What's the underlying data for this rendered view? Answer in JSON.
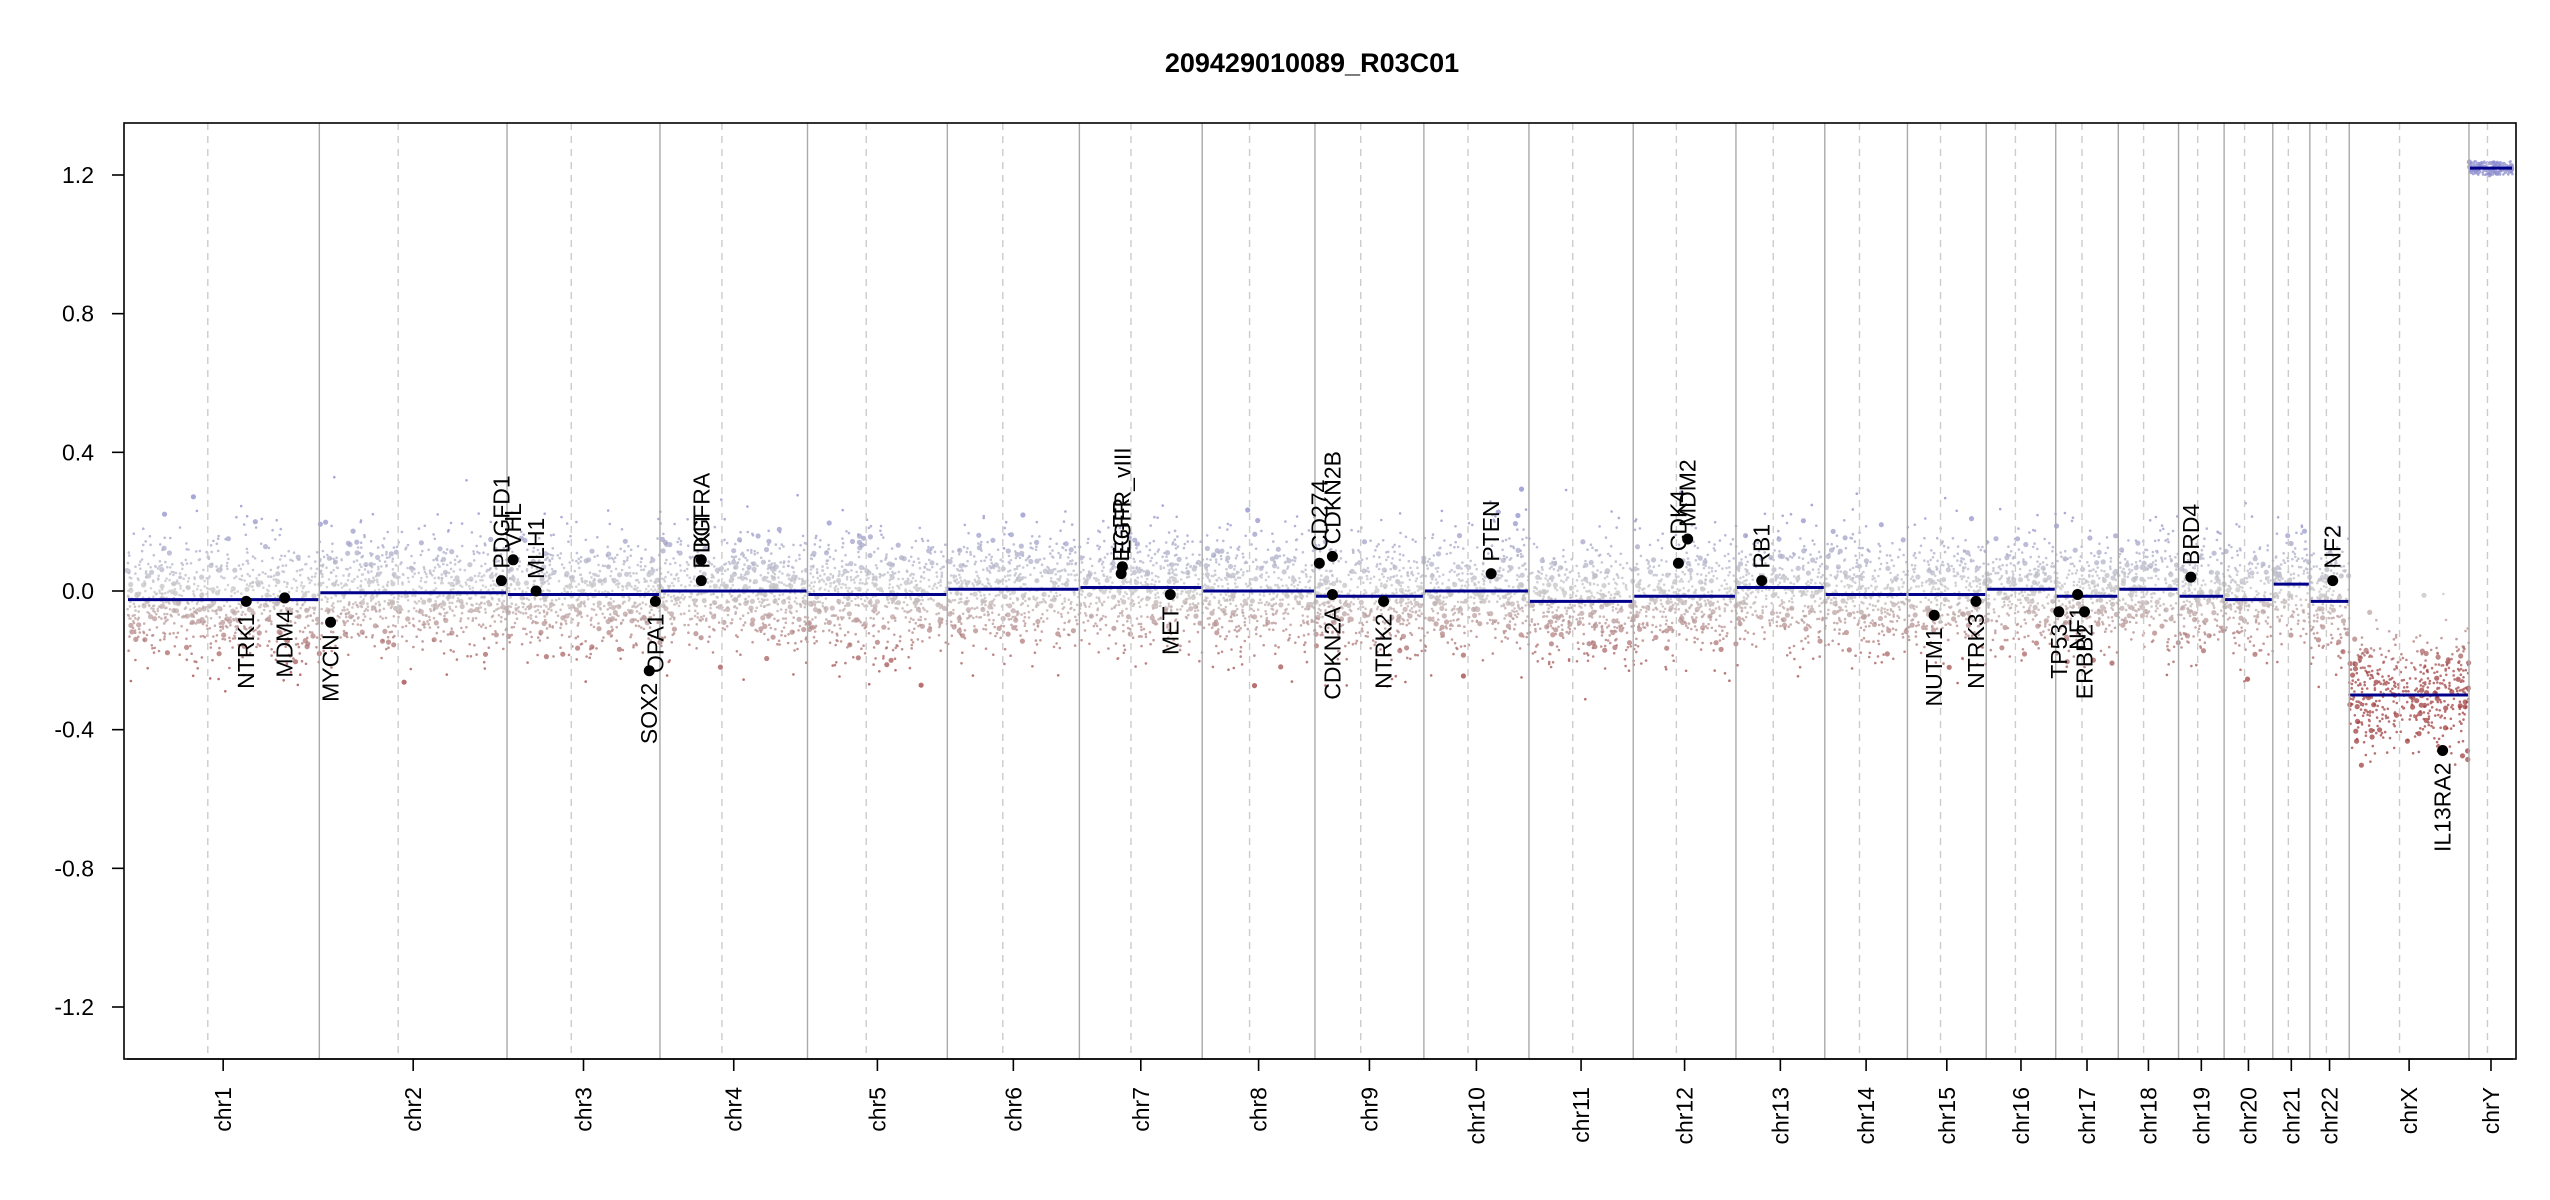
{
  "chart_data": {
    "type": "scatter",
    "title": "209429010089_R03C01",
    "xlabel": "",
    "ylabel": "",
    "ylim": [
      -1.35,
      1.35
    ],
    "yticks": [
      {
        "label": "1.2",
        "value": 1.2
      },
      {
        "label": "0.8",
        "value": 0.8
      },
      {
        "label": "0.4",
        "value": 0.4
      },
      {
        "label": "0.0",
        "value": 0.0
      },
      {
        "label": "-0.4",
        "value": -0.4
      },
      {
        "label": "-0.8",
        "value": -0.8
      },
      {
        "label": "-1.2",
        "value": -1.2
      }
    ],
    "grid": false,
    "chromosomes": [
      {
        "name": "chr1",
        "len": 249,
        "seg": [
          -0.025
        ]
      },
      {
        "name": "chr2",
        "len": 243,
        "seg": [
          -0.005
        ]
      },
      {
        "name": "chr3",
        "len": 198,
        "seg": [
          -0.01
        ]
      },
      {
        "name": "chr4",
        "len": 191,
        "seg": [
          0.0
        ]
      },
      {
        "name": "chr5",
        "len": 181,
        "seg": [
          -0.01
        ]
      },
      {
        "name": "chr6",
        "len": 171,
        "seg": [
          0.005
        ]
      },
      {
        "name": "chr7",
        "len": 159,
        "seg": [
          0.01
        ]
      },
      {
        "name": "chr8",
        "len": 146,
        "seg": [
          0.0
        ]
      },
      {
        "name": "chr9",
        "len": 141,
        "seg": [
          -0.015
        ]
      },
      {
        "name": "chr10",
        "len": 136,
        "seg": [
          0.0
        ]
      },
      {
        "name": "chr11",
        "len": 135,
        "seg": [
          -0.03
        ]
      },
      {
        "name": "chr12",
        "len": 133,
        "seg": [
          -0.015
        ]
      },
      {
        "name": "chr13",
        "len": 115,
        "seg": [
          0.01
        ]
      },
      {
        "name": "chr14",
        "len": 107,
        "seg": [
          -0.01
        ]
      },
      {
        "name": "chr15",
        "len": 102,
        "seg": [
          -0.01
        ]
      },
      {
        "name": "chr16",
        "len": 90,
        "seg": [
          0.005
        ]
      },
      {
        "name": "chr17",
        "len": 81,
        "seg": [
          -0.015
        ]
      },
      {
        "name": "chr18",
        "len": 78,
        "seg": [
          0.005
        ]
      },
      {
        "name": "chr19",
        "len": 59,
        "seg": [
          -0.015
        ]
      },
      {
        "name": "chr20",
        "len": 63,
        "seg": [
          -0.025
        ]
      },
      {
        "name": "chr21",
        "len": 48,
        "seg": [
          0.02
        ]
      },
      {
        "name": "chr22",
        "len": 51,
        "seg": [
          -0.03
        ]
      },
      {
        "name": "chrX",
        "len": 155,
        "seg": [
          -0.3
        ]
      },
      {
        "name": "chrY",
        "len": 57,
        "seg": [
          1.22
        ]
      }
    ],
    "genes": [
      {
        "name": "NTRK1",
        "chr": "chr1",
        "pos": 0.62,
        "y": -0.03
      },
      {
        "name": "MDM4",
        "chr": "chr1",
        "pos": 0.82,
        "y": -0.02
      },
      {
        "name": "MYCN",
        "chr": "chr2",
        "pos": 0.06,
        "y": -0.09
      },
      {
        "name": "PDGFD1",
        "chr": "chr2",
        "pos": 0.97,
        "y": 0.03
      },
      {
        "name": "VHL",
        "chr": "chr3",
        "pos": 0.04,
        "y": 0.09
      },
      {
        "name": "MLH1",
        "chr": "chr3",
        "pos": 0.19,
        "y": 0.0
      },
      {
        "name": "SOX2",
        "chr": "chr3",
        "pos": 0.93,
        "y": -0.23
      },
      {
        "name": "OPA1",
        "chr": "chr3",
        "pos": 0.97,
        "y": -0.03
      },
      {
        "name": "KIT",
        "chr": "chr4",
        "pos": 0.28,
        "y": 0.09
      },
      {
        "name": "PDGFRA",
        "chr": "chr4",
        "pos": 0.28,
        "y": 0.03
      },
      {
        "name": "EGFR",
        "chr": "chr7",
        "pos": 0.34,
        "y": 0.05
      },
      {
        "name": "EGFR_vIII",
        "chr": "chr7",
        "pos": 0.35,
        "y": 0.07
      },
      {
        "name": "MET",
        "chr": "chr7",
        "pos": 0.74,
        "y": -0.01
      },
      {
        "name": "CD274",
        "chr": "chr9",
        "pos": 0.04,
        "y": 0.08
      },
      {
        "name": "CDKN2B",
        "chr": "chr9",
        "pos": 0.16,
        "y": 0.1
      },
      {
        "name": "CDKN2A",
        "chr": "chr9",
        "pos": 0.16,
        "y": -0.01
      },
      {
        "name": "NTRK2",
        "chr": "chr9",
        "pos": 0.63,
        "y": -0.03
      },
      {
        "name": "PTEN",
        "chr": "chr10",
        "pos": 0.64,
        "y": 0.05
      },
      {
        "name": "CDK4",
        "chr": "chr12",
        "pos": 0.44,
        "y": 0.08
      },
      {
        "name": "MDM2",
        "chr": "chr12",
        "pos": 0.53,
        "y": 0.15
      },
      {
        "name": "RB1",
        "chr": "chr13",
        "pos": 0.29,
        "y": 0.03
      },
      {
        "name": "NUTM1",
        "chr": "chr15",
        "pos": 0.34,
        "y": -0.07
      },
      {
        "name": "NTRK3",
        "chr": "chr15",
        "pos": 0.87,
        "y": -0.03
      },
      {
        "name": "TP53",
        "chr": "chr17",
        "pos": 0.05,
        "y": -0.06
      },
      {
        "name": "NF1",
        "chr": "chr17",
        "pos": 0.35,
        "y": -0.01
      },
      {
        "name": "ERBB2",
        "chr": "chr17",
        "pos": 0.46,
        "y": -0.06
      },
      {
        "name": "BRD4",
        "chr": "chr19",
        "pos": 0.27,
        "y": 0.04
      },
      {
        "name": "NF2",
        "chr": "chr22",
        "pos": 0.58,
        "y": 0.03
      },
      {
        "name": "IL13RA2",
        "chr": "chrX",
        "pos": 0.78,
        "y": -0.46
      }
    ],
    "colors": {
      "segment": "#00008B",
      "gain_points": "#8888cc",
      "loss_points": "#a04040",
      "neutral_points": "#c8c8c8",
      "separator": "#aaaaaa",
      "centromere": "#cccccc"
    }
  }
}
